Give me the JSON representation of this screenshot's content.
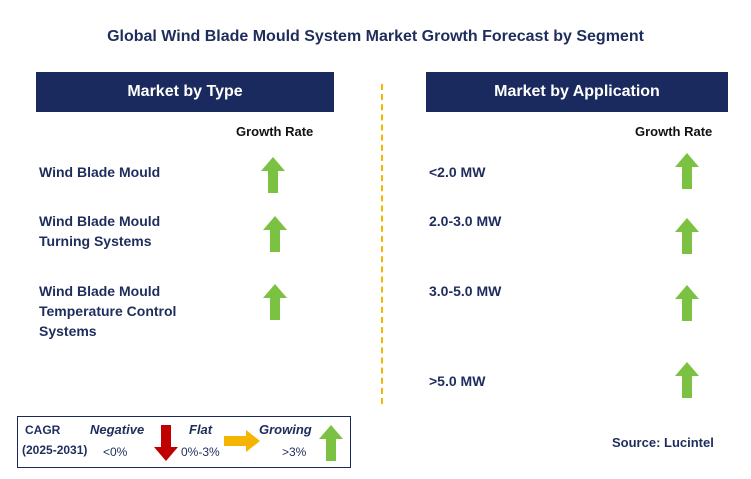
{
  "title": "Global Wind Blade Mould System Market Growth Forecast by Segment",
  "left_panel": {
    "header": "Market by Type",
    "column_label": "Growth Rate",
    "rows": [
      {
        "label_lines": [
          "Wind Blade Mould"
        ],
        "trend": "growing"
      },
      {
        "label_lines": [
          "Wind Blade Mould",
          "Turning Systems"
        ],
        "trend": "growing"
      },
      {
        "label_lines": [
          "Wind Blade Mould",
          "Temperature Control",
          "Systems"
        ],
        "trend": "growing"
      }
    ]
  },
  "right_panel": {
    "header": "Market by Application",
    "column_label": "Growth Rate",
    "rows": [
      {
        "label": "<2.0 MW",
        "trend": "growing"
      },
      {
        "label": "2.0-3.0 MW",
        "trend": "growing"
      },
      {
        "label": "3.0-5.0 MW",
        "trend": "growing"
      },
      {
        "label": ">5.0 MW",
        "trend": "growing"
      }
    ]
  },
  "legend": {
    "cagr_label": "CAGR",
    "period": "(2025-2031)",
    "negative": {
      "label": "Negative",
      "range": "<0%"
    },
    "flat": {
      "label": "Flat",
      "range": "0%-3%"
    },
    "growing": {
      "label": "Growing",
      "range": ">3%"
    }
  },
  "source": "Source: Lucintel",
  "colors": {
    "header_bg": "#1b2a5e",
    "growing": "#7cc242",
    "negative": "#c00000",
    "flat": "#f5b400",
    "divider": "#f5b400"
  },
  "icons": {
    "growing": "up-arrow-icon",
    "negative": "down-arrow-icon",
    "flat": "right-arrow-icon"
  }
}
